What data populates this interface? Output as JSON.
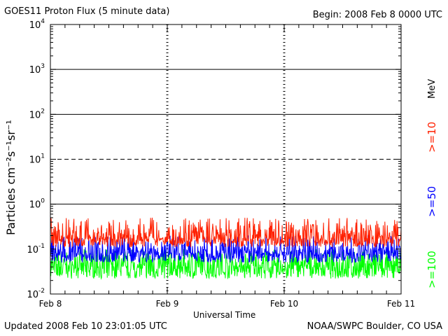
{
  "header": {
    "title": "GOES11 Proton Flux (5 minute data)",
    "begin": "Begin: 2008 Feb 8 0000 UTC"
  },
  "footer": {
    "updated": "Updated 2008 Feb 10 23:01:05 UTC",
    "credit": "NOAA/SWPC Boulder, CO USA"
  },
  "chart_data": {
    "type": "line",
    "xlabel": "Universal Time",
    "ylabel": "Particles cm⁻²s⁻¹sr⁻¹",
    "y_scale": "log",
    "ylim": [
      0.01,
      10000
    ],
    "y_ticks": [
      {
        "value": 0.01,
        "base": "10",
        "exp": "-2"
      },
      {
        "value": 0.1,
        "base": "10",
        "exp": "-1"
      },
      {
        "value": 1,
        "base": "10",
        "exp": "0"
      },
      {
        "value": 10,
        "base": "10",
        "exp": "1"
      },
      {
        "value": 100,
        "base": "10",
        "exp": "2"
      },
      {
        "value": 1000,
        "base": "10",
        "exp": "3"
      },
      {
        "value": 10000,
        "base": "10",
        "exp": "4"
      }
    ],
    "x_ticks": [
      "Feb 8",
      "Feb 9",
      "Feb 10",
      "Feb 11"
    ],
    "xlim_days": [
      0,
      3
    ],
    "reference_lines": [
      {
        "value": 1000,
        "style": "solid"
      },
      {
        "value": 100,
        "style": "solid"
      },
      {
        "value": 10,
        "style": "dashed"
      },
      {
        "value": 1,
        "style": "solid"
      }
    ],
    "unit_label": "MeV",
    "series": [
      {
        "name": ">=10",
        "color": "#ff2000",
        "typical": 0.17,
        "range": [
          0.11,
          0.5
        ]
      },
      {
        "name": ">=50",
        "color": "#0000ff",
        "typical": 0.08,
        "range": [
          0.05,
          0.2
        ]
      },
      {
        "name": ">=100",
        "color": "#00ff00",
        "typical": 0.04,
        "range": [
          0.022,
          0.1
        ]
      }
    ]
  }
}
